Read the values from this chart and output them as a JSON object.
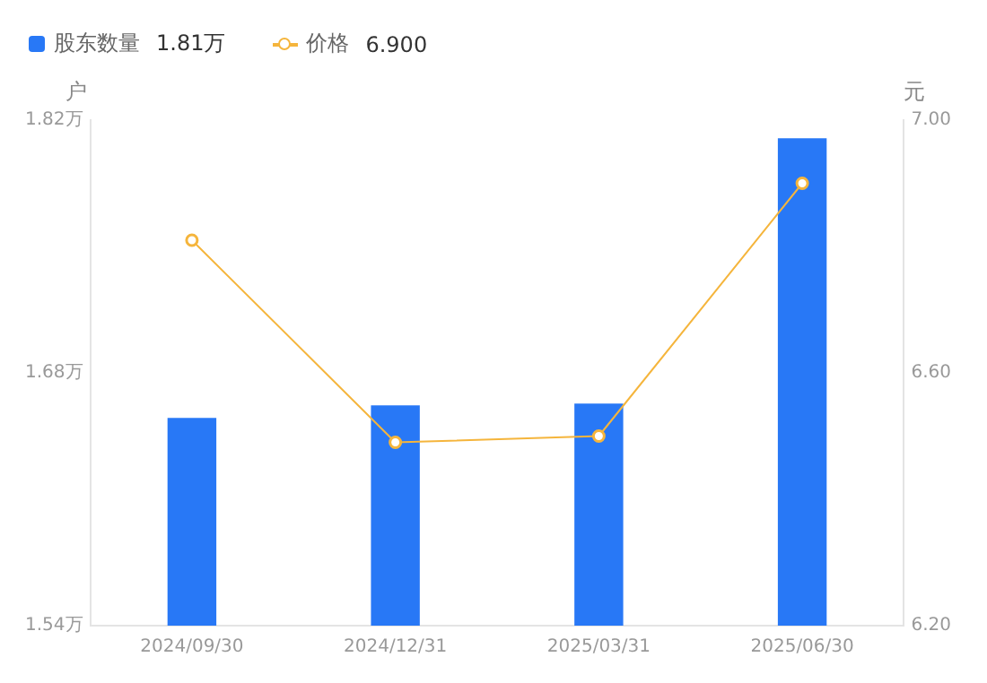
{
  "chart_data": {
    "type": "bar",
    "categories": [
      "2024/09/30",
      "2024/12/31",
      "2025/03/31",
      "2025/06/30"
    ],
    "series": [
      {
        "name": "股东数量",
        "color": "#2878f6",
        "values": [
          1.655,
          1.662,
          1.663,
          1.81
        ]
      },
      {
        "name": "价格",
        "type": "line",
        "axis": "y2",
        "color": "#f5b53c",
        "values": [
          6.81,
          6.49,
          6.5,
          6.9
        ]
      }
    ],
    "annotations": [
      "1.81万",
      "6.900"
    ],
    "ylabel": "户",
    "y2label": "元",
    "ylim": [
      1.54,
      1.82
    ],
    "yticks": [
      {
        "value": 1.54,
        "label": "1.54万"
      },
      {
        "value": 1.68,
        "label": "1.68万"
      },
      {
        "value": 1.82,
        "label": "1.82万"
      }
    ],
    "y2lim": [
      6.2,
      7.0
    ],
    "y2ticks": [
      {
        "value": 6.2,
        "label": "6.20"
      },
      {
        "value": 6.6,
        "label": "6.60"
      },
      {
        "value": 7.0,
        "label": "7.00"
      }
    ],
    "legend": "top left",
    "marker": "circle",
    "grid": false
  }
}
